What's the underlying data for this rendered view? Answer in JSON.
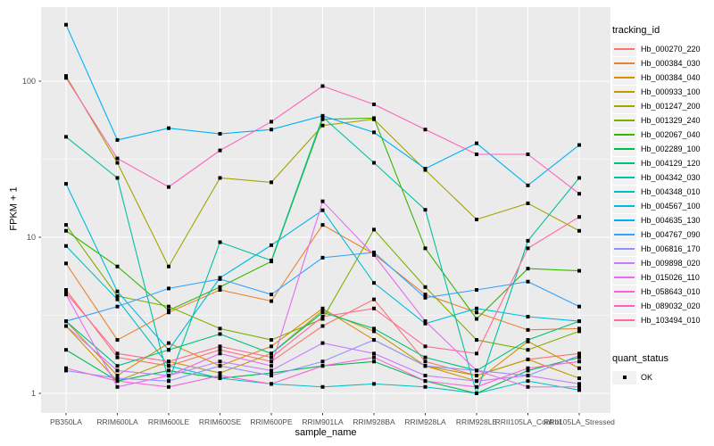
{
  "style": {
    "panel_bg": "#EBEBEB",
    "grid_color": "#FFFFFF",
    "axis_text_color": "#4D4D4D",
    "tick_color": "#333333",
    "marker_color": "#000000",
    "legend_key_bg": "#F2F2F2"
  },
  "chart_data": {
    "type": "line",
    "title": "",
    "xlabel": "sample_name",
    "ylabel": "FPKM + 1",
    "y_scale": "log10",
    "y_ticks": [
      1,
      10,
      100
    ],
    "ylim": [
      0.9,
      300
    ],
    "grid": "on",
    "legend_position": "right",
    "categories": [
      "PB350LA",
      "RRIM600LA",
      "RRIM600LE",
      "RRIM600SE",
      "RRIM600PE",
      "RRIM901LA",
      "RRIM928BA",
      "RRIM928LA",
      "RRIM928LE",
      "RRII105LA_Control",
      "RRII105LA_Stressed"
    ],
    "series": [
      {
        "name": "Hb_000270_220",
        "color": "#F8766D",
        "values": [
          4.6,
          1.7,
          1.5,
          1.9,
          1.6,
          2.7,
          4.0,
          1.6,
          1.3,
          1.65,
          1.8
        ]
      },
      {
        "name": "Hb_000384_030",
        "color": "#EA8331",
        "values": [
          6.8,
          2.2,
          3.3,
          4.6,
          3.9,
          12.0,
          7.8,
          4.3,
          3.3,
          2.55,
          2.6
        ]
      },
      {
        "name": "Hb_000384_040",
        "color": "#D89000",
        "values": [
          2.9,
          1.3,
          2.1,
          1.5,
          2.0,
          3.5,
          2.2,
          1.5,
          1.2,
          2.15,
          1.45
        ]
      },
      {
        "name": "Hb_000933_100",
        "color": "#C09B00",
        "values": [
          2.7,
          1.2,
          1.6,
          1.35,
          1.8,
          3.4,
          2.5,
          1.5,
          1.3,
          1.65,
          1.25
        ]
      },
      {
        "name": "Hb_001247_200",
        "color": "#A3A500",
        "values": [
          108,
          30,
          6.5,
          24,
          22.5,
          52,
          57,
          27,
          13,
          16.5,
          11
        ]
      },
      {
        "name": "Hb_001329_240",
        "color": "#7CAE00",
        "values": [
          12,
          4.2,
          3.6,
          2.6,
          2.2,
          3.0,
          11.2,
          4.8,
          2.2,
          1.9,
          2.5
        ]
      },
      {
        "name": "Hb_002067_040",
        "color": "#39B600",
        "values": [
          11,
          6.5,
          3.4,
          4.8,
          7.0,
          57,
          58,
          8.5,
          3.0,
          6.3,
          6.1
        ]
      },
      {
        "name": "Hb_002289_100",
        "color": "#00BB4E",
        "values": [
          1.9,
          1.2,
          1.4,
          1.25,
          1.35,
          1.5,
          1.6,
          1.2,
          1.0,
          1.4,
          1.7
        ]
      },
      {
        "name": "Hb_004129_120",
        "color": "#00BF7D",
        "values": [
          2.9,
          1.5,
          1.9,
          2.4,
          1.8,
          3.3,
          2.6,
          1.7,
          1.4,
          2.2,
          2.9
        ]
      },
      {
        "name": "Hb_004342_030",
        "color": "#00C1A3",
        "values": [
          44,
          24,
          1.2,
          9.3,
          7.1,
          59,
          30,
          15,
          1.0,
          9.5,
          24
        ]
      },
      {
        "name": "Hb_004348_010",
        "color": "#00BFC4",
        "values": [
          8.8,
          4.0,
          1.5,
          1.25,
          1.15,
          1.1,
          1.15,
          1.1,
          1.0,
          1.2,
          1.05
        ]
      },
      {
        "name": "Hb_004567_100",
        "color": "#00BAE0",
        "values": [
          22,
          4.5,
          1.9,
          5.5,
          8.9,
          14.9,
          5.1,
          2.8,
          3.5,
          3.1,
          2.9
        ]
      },
      {
        "name": "Hb_004635_130",
        "color": "#00B0F6",
        "values": [
          230,
          42,
          50,
          46,
          49,
          60,
          47,
          27.5,
          40,
          21.5,
          39
        ]
      },
      {
        "name": "Hb_004767_090",
        "color": "#35A2FF",
        "values": [
          2.9,
          3.6,
          4.7,
          5.4,
          4.3,
          7.4,
          8.0,
          4.1,
          4.6,
          5.2,
          3.6
        ]
      },
      {
        "name": "Hb_006816_170",
        "color": "#9590FF",
        "values": [
          1.4,
          1.25,
          1.2,
          1.5,
          1.3,
          1.6,
          2.2,
          1.5,
          1.4,
          1.3,
          1.75
        ]
      },
      {
        "name": "Hb_009898_020",
        "color": "#C77CFF",
        "values": [
          2.7,
          1.4,
          1.3,
          1.6,
          1.4,
          2.1,
          1.8,
          1.3,
          1.2,
          1.3,
          1.15
        ]
      },
      {
        "name": "Hb_015026_110",
        "color": "#E76BF3",
        "values": [
          4.3,
          1.1,
          1.3,
          1.8,
          1.5,
          17,
          7.7,
          2.9,
          1.4,
          1.1,
          1.1
        ]
      },
      {
        "name": "Hb_058643_010",
        "color": "#FA62DB",
        "values": [
          1.45,
          1.2,
          1.1,
          1.3,
          1.15,
          1.5,
          1.7,
          1.2,
          1.1,
          1.45,
          1.6
        ]
      },
      {
        "name": "Hb_089032_020",
        "color": "#FF62BC",
        "values": [
          105,
          32,
          21,
          36,
          55,
          93,
          71,
          49,
          34,
          34,
          19
        ]
      },
      {
        "name": "Hb_103494_010",
        "color": "#FF6A98",
        "values": [
          4.4,
          1.8,
          1.6,
          2.0,
          1.7,
          3.1,
          3.5,
          2.0,
          1.8,
          8.5,
          13.5
        ]
      }
    ],
    "legend": {
      "series_title": "tracking_id",
      "shape_title": "quant_status",
      "shape_label": "OK"
    }
  }
}
